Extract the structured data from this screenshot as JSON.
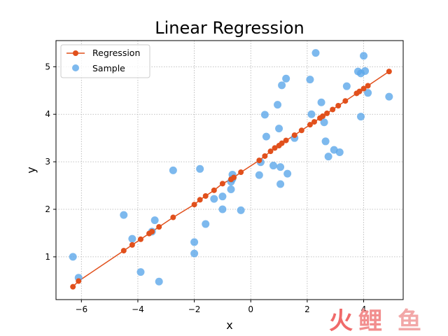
{
  "chart_data": {
    "type": "scatter",
    "title": "Linear Regression",
    "xlabel": "x",
    "ylabel": "y",
    "xlim": [
      -6.9,
      5.4
    ],
    "ylim": [
      0.1,
      5.55
    ],
    "xticks": [
      -6,
      -4,
      -2,
      0,
      2,
      4
    ],
    "xtick_labels": [
      "−6",
      "−4",
      "−2",
      "0",
      "2",
      "4"
    ],
    "yticks": [
      1,
      2,
      3,
      4,
      5
    ],
    "ytick_labels": [
      "1",
      "2",
      "3",
      "4",
      "5"
    ],
    "grid": true,
    "legend_position": "top-left",
    "series": [
      {
        "name": "Regression",
        "kind": "line-markers",
        "color": "#e1501c",
        "x": [
          -6.3,
          -6.1,
          -4.5,
          -4.2,
          -3.9,
          -3.6,
          -3.5,
          -3.25,
          -2.75,
          -2.0,
          -1.8,
          -1.6,
          -1.3,
          -1.0,
          -0.7,
          -0.6,
          -0.35,
          0.3,
          0.5,
          0.7,
          0.85,
          1.0,
          1.1,
          1.25,
          1.55,
          1.8,
          2.1,
          2.25,
          2.45,
          2.55,
          2.7,
          2.9,
          3.1,
          3.35,
          3.75,
          3.85,
          4.0,
          4.15,
          4.9
        ],
        "y": [
          0.37,
          0.49,
          1.13,
          1.25,
          1.37,
          1.49,
          1.53,
          1.63,
          1.83,
          2.1,
          2.2,
          2.28,
          2.4,
          2.54,
          2.63,
          2.67,
          2.78,
          3.03,
          3.12,
          3.22,
          3.29,
          3.34,
          3.39,
          3.45,
          3.56,
          3.66,
          3.78,
          3.84,
          3.92,
          3.96,
          4.02,
          4.1,
          4.18,
          4.28,
          4.44,
          4.48,
          4.54,
          4.6,
          4.9
        ]
      },
      {
        "name": "Sample",
        "kind": "scatter",
        "color": "#5da8ea",
        "x": [
          -6.3,
          -6.1,
          -4.5,
          -4.2,
          -3.9,
          -3.5,
          -3.4,
          -3.25,
          -2.75,
          -2.0,
          -2.0,
          -1.8,
          -1.6,
          -1.3,
          -1.0,
          -1.0,
          -0.7,
          -0.7,
          -0.65,
          -0.65,
          -0.35,
          0.3,
          0.35,
          0.5,
          0.55,
          0.8,
          0.95,
          1.0,
          1.05,
          1.05,
          1.1,
          1.25,
          1.3,
          1.55,
          2.1,
          2.15,
          2.3,
          2.5,
          2.6,
          2.65,
          2.75,
          2.95,
          3.15,
          3.4,
          3.8,
          3.9,
          3.9,
          4.0,
          4.05,
          4.15,
          4.9
        ],
        "y": [
          1.0,
          0.56,
          1.88,
          1.38,
          0.68,
          1.53,
          1.77,
          0.48,
          2.82,
          1.07,
          1.31,
          2.85,
          1.69,
          2.22,
          2.27,
          2.0,
          2.42,
          2.58,
          2.64,
          2.73,
          1.98,
          2.72,
          2.99,
          3.99,
          3.53,
          2.92,
          4.2,
          3.7,
          2.89,
          2.53,
          4.61,
          4.75,
          2.75,
          3.5,
          4.73,
          4.0,
          5.29,
          4.25,
          3.83,
          3.43,
          3.11,
          3.25,
          3.2,
          4.59,
          4.9,
          3.95,
          4.86,
          5.23,
          4.91,
          4.45,
          4.37
        ]
      }
    ]
  },
  "watermark": {
    "text_1": "火",
    "text_2": "鲤",
    "text_3": "鱼",
    "color_1": "#f06a6a",
    "color_2": "#f28e8e",
    "color_3": "#f2a7a7"
  }
}
